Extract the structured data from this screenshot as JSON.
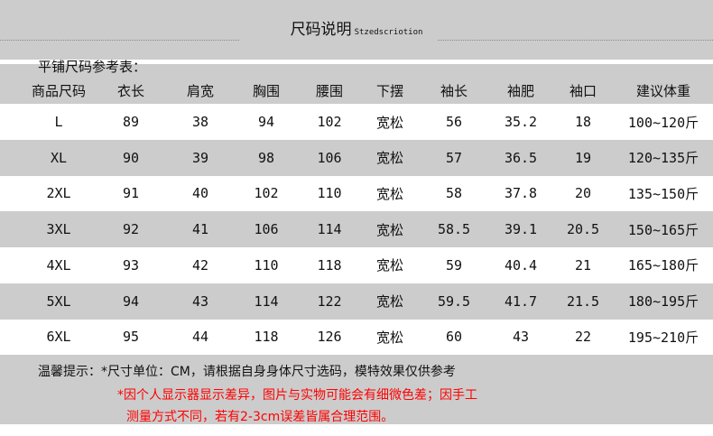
{
  "title": "尺码说明",
  "title_en": "Stzedscriotion",
  "subtitle": "平铺尺码参考表：",
  "headers": [
    "商品尺码",
    "衣长",
    "肩宽",
    "胸围",
    "腰围",
    "下摆",
    "袖长",
    "袖肥",
    "袖口",
    "建议体重"
  ],
  "rows": [
    [
      "L",
      "89",
      "38",
      "94",
      "102",
      "宽松",
      "56",
      "35.2",
      "18",
      "100~120斤"
    ],
    [
      "XL",
      "90",
      "39",
      "98",
      "106",
      "宽松",
      "57",
      "36.5",
      "19",
      "120~135斤"
    ],
    [
      "2XL",
      "91",
      "40",
      "102",
      "110",
      "宽松",
      "58",
      "37.8",
      "20",
      "135~150斤"
    ],
    [
      "3XL",
      "92",
      "41",
      "106",
      "114",
      "宽松",
      "58.5",
      "39.1",
      "20.5",
      "150~165斤"
    ],
    [
      "4XL",
      "93",
      "42",
      "110",
      "118",
      "宽松",
      "59",
      "40.4",
      "21",
      "165~180斤"
    ],
    [
      "5XL",
      "94",
      "43",
      "114",
      "122",
      "宽松",
      "59.5",
      "41.7",
      "21.5",
      "180~195斤"
    ],
    [
      "6XL",
      "95",
      "44",
      "118",
      "126",
      "宽松",
      "60",
      "43",
      "22",
      "195~210斤"
    ]
  ],
  "notes": {
    "tip": "温馨提示：*尺寸单位：CM，请根据自身身体尺寸选码，模特效果仅供参考",
    "warn1": "*因个人显示器显示差异，图片与实物可能会有细微色差；因手工",
    "warn2": "测量方式不同，若有2-3cm误差皆属合理范围。"
  },
  "colors": {
    "band": "#cccccc",
    "warn": "#ff0000"
  }
}
